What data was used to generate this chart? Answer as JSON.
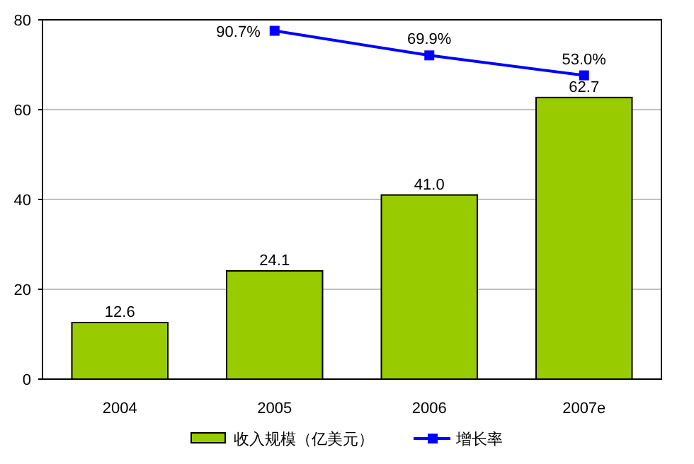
{
  "chart_data": {
    "type": "bar",
    "categories": [
      "2004",
      "2005",
      "2006",
      "2007e"
    ],
    "series": [
      {
        "name": "收入规模（亿美元）",
        "color": "#99cc00",
        "values": [
          12.6,
          24.1,
          41.0,
          62.7
        ],
        "value_labels": [
          "12.6",
          "24.1",
          "41.0",
          "62.7"
        ]
      },
      {
        "name": "增长率",
        "type": "line",
        "axis": "y2",
        "color": "#0000ff",
        "marker": "square",
        "values": [
          null,
          90.7,
          69.9,
          53.0
        ],
        "value_labels": [
          null,
          "90.7%",
          "69.9%",
          "53.0%"
        ]
      }
    ],
    "ylim": [
      0,
      80
    ],
    "yticks": [
      0,
      20,
      40,
      60,
      80
    ],
    "y2lim": [
      -204,
      100
    ],
    "grid": "y",
    "legend": "bottom"
  }
}
